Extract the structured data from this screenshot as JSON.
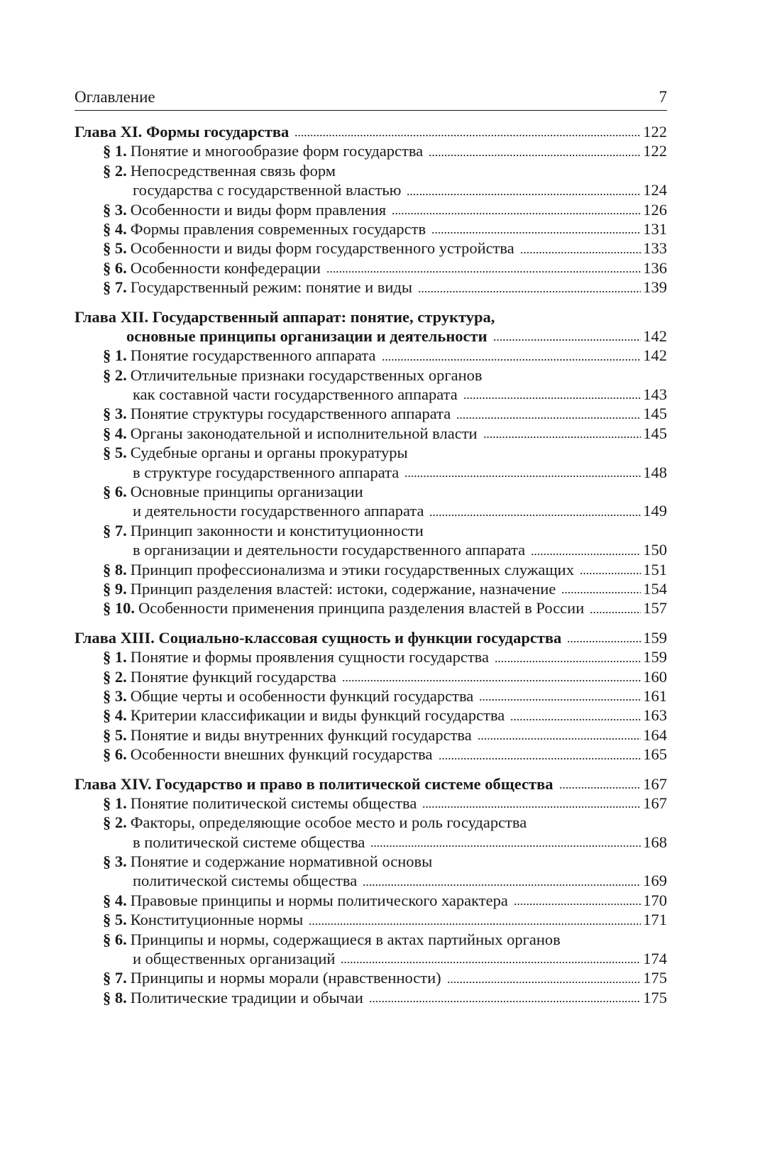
{
  "header": {
    "title": "Оглавление",
    "page_number": "7"
  },
  "chapters": [
    {
      "label": "Глава XI.",
      "lines": [
        "Формы государства"
      ],
      "page": "122",
      "sections": [
        {
          "num": "§ 1.",
          "lines": [
            "Понятие и многообразие форм государства"
          ],
          "page": "122"
        },
        {
          "num": "§ 2.",
          "lines": [
            "Непосредственная связь форм",
            "государства с государственной властью"
          ],
          "page": "124"
        },
        {
          "num": "§ 3.",
          "lines": [
            "Особенности и виды форм правления"
          ],
          "page": "126"
        },
        {
          "num": "§ 4.",
          "lines": [
            "Формы правления современных государств"
          ],
          "page": "131"
        },
        {
          "num": "§ 5.",
          "lines": [
            "Особенности и виды форм государственного устройства"
          ],
          "page": "133"
        },
        {
          "num": "§ 6.",
          "lines": [
            "Особенности конфедерации"
          ],
          "page": "136"
        },
        {
          "num": "§ 7.",
          "lines": [
            "Государственный режим: понятие и виды"
          ],
          "page": "139"
        }
      ]
    },
    {
      "label": "Глава XII.",
      "lines": [
        "Государственный аппарат: понятие, структура,",
        "основные принципы организации и деятельности"
      ],
      "page": "142",
      "sections": [
        {
          "num": "§ 1.",
          "lines": [
            "Понятие государственного аппарата"
          ],
          "page": "142"
        },
        {
          "num": "§ 2.",
          "lines": [
            "Отличительные признаки государственных органов",
            "как составной части государственного аппарата"
          ],
          "page": "143"
        },
        {
          "num": "§ 3.",
          "lines": [
            "Понятие структуры государственного аппарата"
          ],
          "page": "145"
        },
        {
          "num": "§ 4.",
          "lines": [
            "Органы законодательной и исполнительной власти"
          ],
          "page": "145"
        },
        {
          "num": "§ 5.",
          "lines": [
            "Судебные органы и органы прокуратуры",
            "в структуре государственного аппарата"
          ],
          "page": "148"
        },
        {
          "num": "§ 6.",
          "lines": [
            "Основные принципы организации",
            "и деятельности государственного аппарата"
          ],
          "page": "149"
        },
        {
          "num": "§ 7.",
          "lines": [
            "Принцип законности и конституционности",
            "в организации и деятельности государственного аппарата"
          ],
          "page": "150"
        },
        {
          "num": "§ 8.",
          "lines": [
            "Принцип профессионализма и этики государственных служащих"
          ],
          "page": "151"
        },
        {
          "num": "§ 9.",
          "lines": [
            "Принцип разделения властей: истоки, содержание, назначение"
          ],
          "page": "154"
        },
        {
          "num": "§ 10.",
          "lines": [
            "Особенности применения принципа разделения властей в России"
          ],
          "page": "157"
        }
      ]
    },
    {
      "label": "Глава XIII.",
      "lines": [
        "Социально-классовая сущность и функции государства"
      ],
      "page": "159",
      "sections": [
        {
          "num": "§ 1.",
          "lines": [
            "Понятие и формы проявления сущности государства"
          ],
          "page": "159"
        },
        {
          "num": "§ 2.",
          "lines": [
            "Понятие функций государства"
          ],
          "page": "160"
        },
        {
          "num": "§ 3.",
          "lines": [
            "Общие черты и особенности функций государства"
          ],
          "page": "161"
        },
        {
          "num": "§ 4.",
          "lines": [
            "Критерии классификации и виды функций государства"
          ],
          "page": "163"
        },
        {
          "num": "§ 5.",
          "lines": [
            "Понятие и виды внутренних функций государства"
          ],
          "page": "164"
        },
        {
          "num": "§ 6.",
          "lines": [
            "Особенности внешних функций государства"
          ],
          "page": "165"
        }
      ]
    },
    {
      "label": "Глава XIV.",
      "lines": [
        "Государство и право в политической системе общества"
      ],
      "page": "167",
      "sections": [
        {
          "num": "§ 1.",
          "lines": [
            "Понятие политической системы общества"
          ],
          "page": "167"
        },
        {
          "num": "§ 2.",
          "lines": [
            "Факторы, определяющие особое место и роль государства",
            "в политической системе общества"
          ],
          "page": "168"
        },
        {
          "num": "§ 3.",
          "lines": [
            "Понятие и содержание нормативной основы",
            "политической системы общества"
          ],
          "page": "169"
        },
        {
          "num": "§ 4.",
          "lines": [
            "Правовые принципы и нормы политического характера"
          ],
          "page": "170"
        },
        {
          "num": "§ 5.",
          "lines": [
            "Конституционные нормы"
          ],
          "page": "171"
        },
        {
          "num": "§ 6.",
          "lines": [
            "Принципы и нормы, содержащиеся в актах партийных органов",
            "и общественных организаций"
          ],
          "page": "174"
        },
        {
          "num": "§ 7.",
          "lines": [
            "Принципы и нормы морали (нравственности)"
          ],
          "page": "175"
        },
        {
          "num": "§ 8.",
          "lines": [
            "Политические традиции и обычаи"
          ],
          "page": "175"
        }
      ]
    }
  ]
}
